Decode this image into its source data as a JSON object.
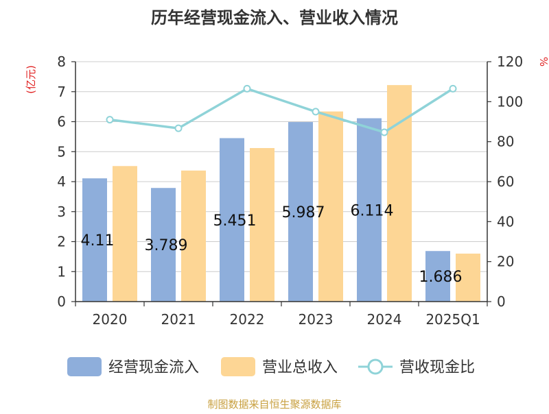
{
  "chart_data": {
    "type": "bar",
    "title": "历年经营现金流入、营业收入情况",
    "categories": [
      "2020",
      "2021",
      "2022",
      "2023",
      "2024",
      "2025Q1"
    ],
    "left_axis": {
      "unit_label": "(亿元)",
      "range": [
        0,
        8
      ],
      "ticks": [
        0,
        1,
        2,
        3,
        4,
        5,
        6,
        7,
        8
      ]
    },
    "right_axis": {
      "unit_label": "%",
      "range": [
        0,
        120
      ],
      "ticks": [
        0,
        20,
        40,
        60,
        80,
        100,
        120
      ]
    },
    "grid": true,
    "legend_position": "bottom",
    "series": [
      {
        "name": "经营现金流入",
        "kind": "bar",
        "axis": "left",
        "color": "#8eaedb",
        "values": [
          4.11,
          3.789,
          5.451,
          5.987,
          6.114,
          1.686
        ],
        "labels": [
          "4.11",
          "3.789",
          "5.451",
          "5.987",
          "6.114",
          "1.686"
        ]
      },
      {
        "name": "营业总收入",
        "kind": "bar",
        "axis": "left",
        "color": "#fdd695",
        "values": [
          4.52,
          4.37,
          5.12,
          6.34,
          7.22,
          1.6
        ]
      },
      {
        "name": "营收现金比",
        "kind": "line",
        "axis": "right",
        "color": "#8fd3d8",
        "values": [
          91,
          86.7,
          106.5,
          95,
          84.7,
          106.5
        ]
      }
    ]
  },
  "source": "制图数据来自恒生聚源数据库"
}
